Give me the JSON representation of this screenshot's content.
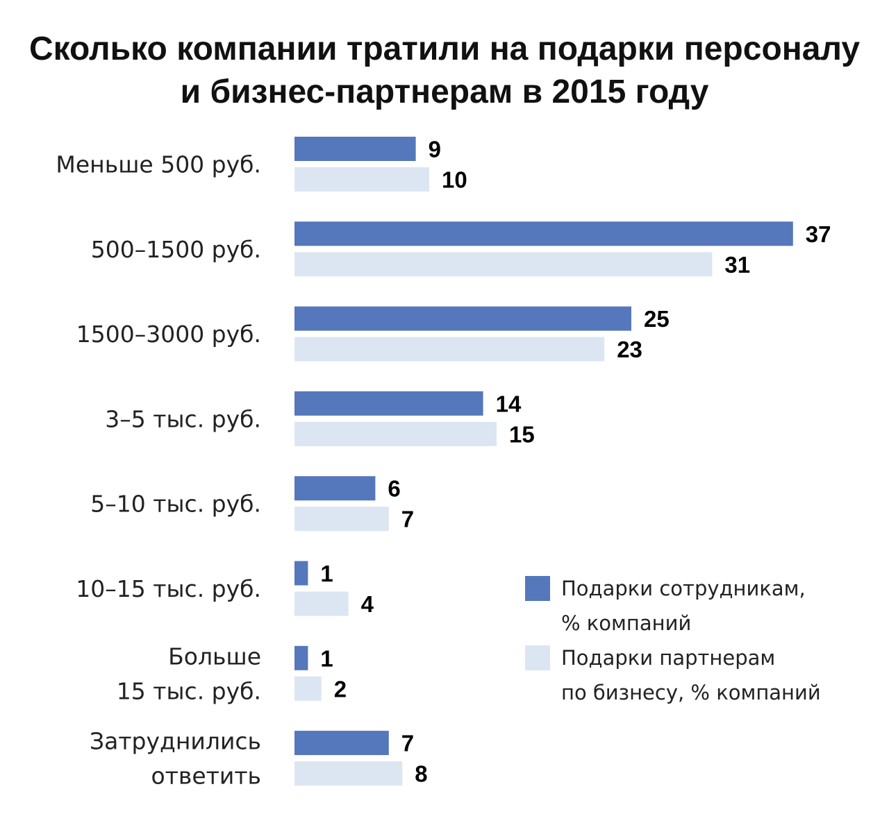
{
  "chart_data": {
    "type": "bar",
    "orientation": "horizontal",
    "title": [
      "Сколько компании тратили на подарки персоналу",
      "и бизнес-партнерам в 2015 году"
    ],
    "categories": [
      [
        "Меньше 500 руб."
      ],
      [
        "500–1500 руб."
      ],
      [
        "1500–3000 руб."
      ],
      [
        "3–5 тыс. руб."
      ],
      [
        "5–10 тыс. руб."
      ],
      [
        "10–15 тыс. руб."
      ],
      [
        "Больше",
        "15 тыс. руб."
      ],
      [
        "Затруднились",
        "ответить"
      ]
    ],
    "series": [
      {
        "name": [
          "Подарки сотрудникам,",
          "% компаний"
        ],
        "color": "#5577bb",
        "values": [
          9,
          37,
          25,
          14,
          6,
          1,
          1,
          7
        ]
      },
      {
        "name": [
          "Подарки партнерам",
          "по бизнесу, % компаний"
        ],
        "color": "#dce6f2",
        "values": [
          10,
          31,
          23,
          15,
          7,
          4,
          2,
          8
        ]
      }
    ],
    "xlim": [
      0,
      37
    ],
    "grid": false,
    "legend_position": "lower-right"
  }
}
